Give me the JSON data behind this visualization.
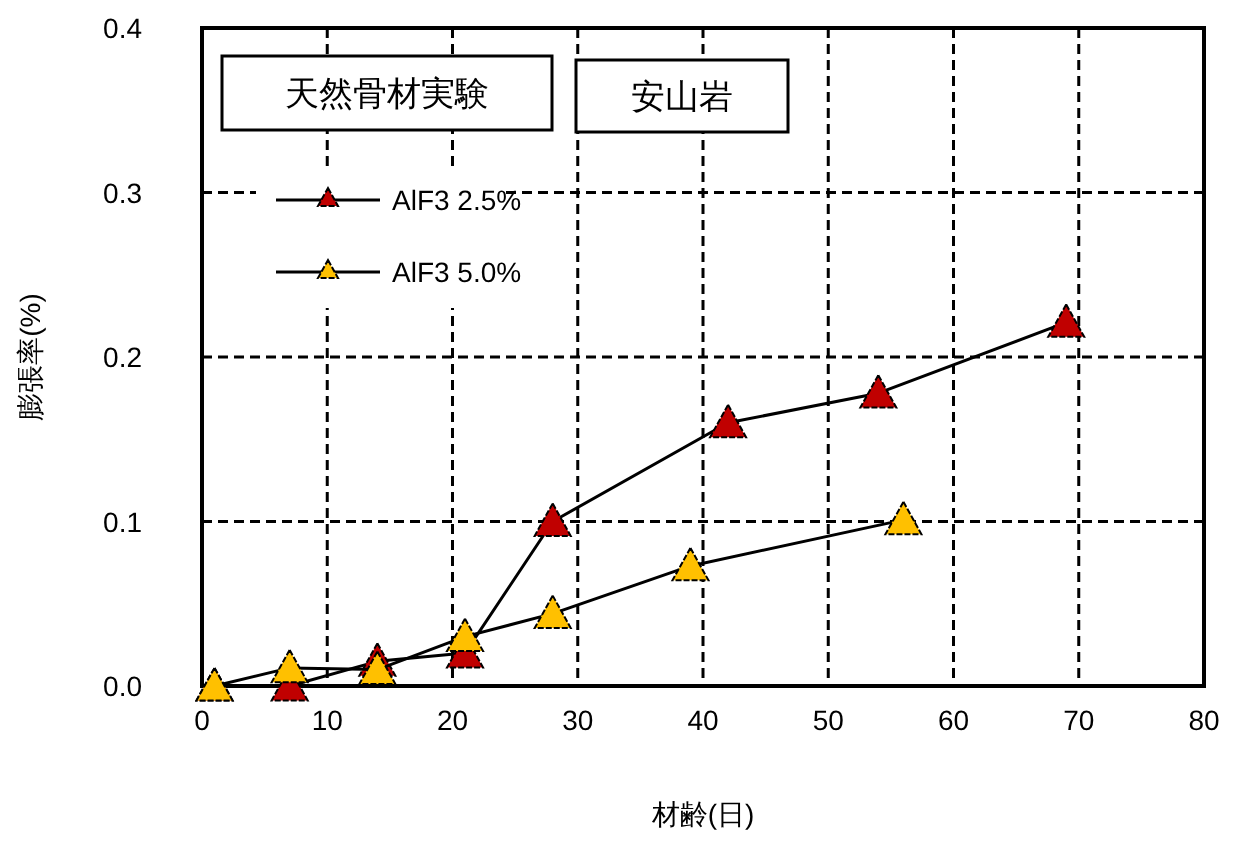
{
  "chart_data": {
    "type": "line",
    "xlabel": "材齢(日)",
    "ylabel": "膨張率(%)",
    "xlim": [
      0,
      80
    ],
    "xticks": [
      0,
      10,
      20,
      30,
      40,
      50,
      60,
      70,
      80
    ],
    "ylim": [
      0,
      0.4
    ],
    "yticks": [
      {
        "value": 0,
        "label": "0.0"
      },
      0.1,
      0.2,
      0.3,
      0.4
    ],
    "grid": true,
    "legend": "top left",
    "marker": "triangle",
    "line_style": "solid",
    "annotations": [
      "天然骨材実験",
      "安山岩"
    ],
    "series": [
      {
        "name": "AlF3 2.5%",
        "color": "#c00000",
        "x": [
          1,
          7,
          14,
          21,
          28,
          42,
          54,
          69
        ],
        "values": [
          0,
          0,
          0.015,
          0.02,
          0.1,
          0.16,
          0.178,
          0.221
        ]
      },
      {
        "name": "AlF3 5.0%",
        "color": "#ffc000",
        "x": [
          1,
          7,
          14,
          21,
          28,
          39,
          56
        ],
        "values": [
          0,
          0.011,
          0.01,
          0.03,
          0.044,
          0.073,
          0.101
        ]
      }
    ]
  }
}
